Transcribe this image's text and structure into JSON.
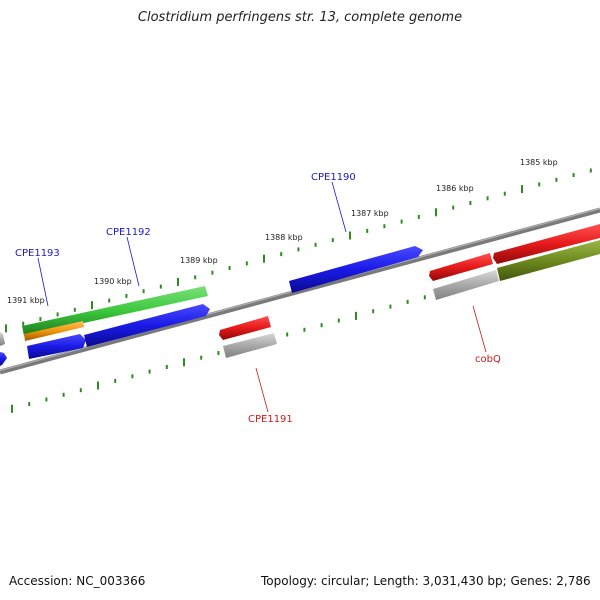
{
  "title": "Clostridium perfringens str. 13, complete genome",
  "accession": "Accession: NC_003366",
  "summary": "Topology: circular; Length: 3,031,430 bp; Genes: 2,786",
  "colors": {
    "backbone": "#808080",
    "tick": "#2e8b22",
    "label_blue": "#1a1acc",
    "label_red": "#cc1a1a",
    "blue": "#1a1ae6",
    "red": "#e61a1a",
    "green": "#3cc83c",
    "orange": "#f0960a",
    "gray": "#a0a0a0",
    "olive": "#6e8a1e"
  },
  "scale_labels": [
    "1391 kbp",
    "1390 kbp",
    "1389 kbp",
    "1388 kbp",
    "1387 kbp",
    "1386 kbp",
    "1385 kbp"
  ],
  "gene_labels": {
    "cpe1193": "CPE1193",
    "cpe1192": "CPE1192",
    "cpe1190": "CPE1190",
    "cpe1191": "CPE1191",
    "cobq": "cobQ"
  }
}
